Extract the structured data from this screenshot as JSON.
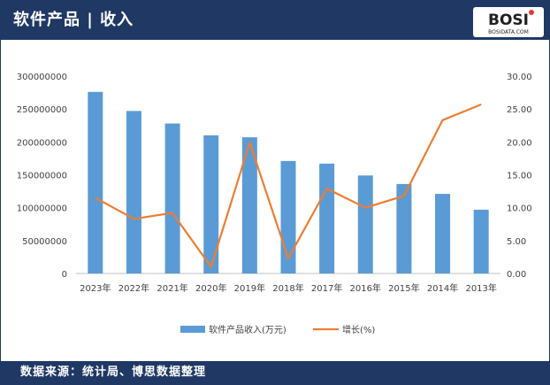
{
  "header": {
    "title": "软件产品 | 收入"
  },
  "logo": {
    "text": "BOSI",
    "sub": "BOSIDATA.COM"
  },
  "footer": {
    "source": "数据来源：统计局、博思数据整理"
  },
  "colors": {
    "header_bg": "#1f3864",
    "bar": "#5b9bd5",
    "line": "#ed7d31"
  },
  "chart_data": {
    "type": "bar",
    "categories": [
      "2023年",
      "2022年",
      "2021年",
      "2020年",
      "2019年",
      "2018年",
      "2017年",
      "2016年",
      "2015年",
      "2014年",
      "2013年"
    ],
    "series": [
      {
        "name": "软件产品收入(万元)",
        "type": "bar",
        "axis": "left",
        "values": [
          276000000,
          247000000,
          228000000,
          210000000,
          207000000,
          171000000,
          167000000,
          149000000,
          136000000,
          121000000,
          97000000
        ]
      },
      {
        "name": "增长(%)",
        "type": "line",
        "axis": "right",
        "values": [
          11.5,
          8.3,
          9.2,
          1.0,
          19.9,
          2.3,
          12.9,
          10.0,
          11.8,
          23.3,
          25.7
        ]
      }
    ],
    "y_left": {
      "ylim": [
        0,
        300000000
      ],
      "ticks": [
        "0",
        "50000000",
        "100000000",
        "150000000",
        "200000000",
        "250000000",
        "300000000"
      ]
    },
    "y_right": {
      "ylim": [
        0,
        30
      ],
      "ticks": [
        "0.00",
        "5.00",
        "10.00",
        "15.00",
        "20.00",
        "25.00",
        "30.00"
      ]
    },
    "legend_position": "bottom",
    "grid": false
  }
}
